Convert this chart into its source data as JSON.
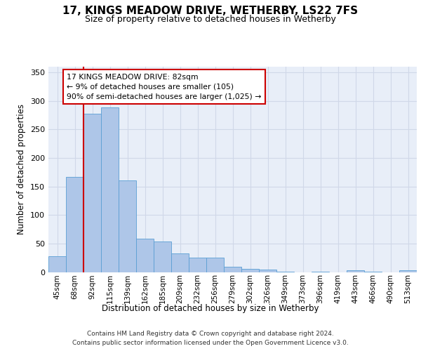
{
  "title": "17, KINGS MEADOW DRIVE, WETHERBY, LS22 7FS",
  "subtitle": "Size of property relative to detached houses in Wetherby",
  "xlabel": "Distribution of detached houses by size in Wetherby",
  "ylabel": "Number of detached properties",
  "categories": [
    "45sqm",
    "68sqm",
    "92sqm",
    "115sqm",
    "139sqm",
    "162sqm",
    "185sqm",
    "209sqm",
    "232sqm",
    "256sqm",
    "279sqm",
    "302sqm",
    "326sqm",
    "349sqm",
    "373sqm",
    "396sqm",
    "419sqm",
    "443sqm",
    "466sqm",
    "490sqm",
    "513sqm"
  ],
  "values": [
    28,
    167,
    278,
    289,
    161,
    58,
    53,
    33,
    25,
    25,
    9,
    5,
    4,
    1,
    0,
    1,
    0,
    3,
    1,
    0,
    3
  ],
  "bar_color": "#aec6e8",
  "bar_edge_color": "#5a9fd4",
  "grid_color": "#d0d8e8",
  "background_color": "#e8eef8",
  "red_line_x": 1.5,
  "annotation_text": "17 KINGS MEADOW DRIVE: 82sqm\n← 9% of detached houses are smaller (105)\n90% of semi-detached houses are larger (1,025) →",
  "annotation_box_color": "#ffffff",
  "annotation_border_color": "#cc0000",
  "footer_line1": "Contains HM Land Registry data © Crown copyright and database right 2024.",
  "footer_line2": "Contains public sector information licensed under the Open Government Licence v3.0.",
  "ylim": [
    0,
    360
  ],
  "yticks": [
    0,
    50,
    100,
    150,
    200,
    250,
    300,
    350
  ]
}
